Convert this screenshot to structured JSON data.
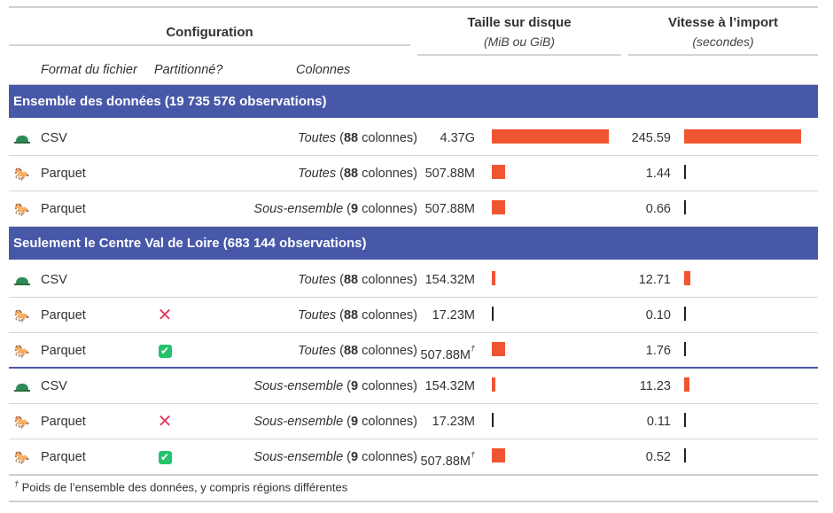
{
  "header": {
    "configuration": "Configuration",
    "size_title": "Taille sur disque",
    "size_subtitle": "(MiB ou GiB)",
    "speed_title": "Vitesse à l’import",
    "speed_subtitle": "(secondes)",
    "col_format": "Format du fichier",
    "col_partition": "Partitionné?",
    "col_columns": "Colonnes"
  },
  "groups": [
    {
      "label": "Ensemble des données (19 735 576 observations)",
      "rows": [
        {
          "icon": "turtle-icon",
          "format": "CSV",
          "partition": "",
          "cols_word": "Toutes",
          "cols_n": "88",
          "cols_suffix": "colonnes)",
          "size": "4.37G",
          "size_note": "",
          "size_frac": 1.0,
          "speed": "245.59",
          "speed_frac": 1.0
        },
        {
          "icon": "horse-icon",
          "format": "Parquet",
          "partition": "",
          "cols_word": "Toutes",
          "cols_n": "88",
          "cols_suffix": "colonnes)",
          "size": "507.88M",
          "size_note": "",
          "size_frac": 0.113,
          "speed": "1.44",
          "speed_frac": 0.006
        },
        {
          "icon": "horse-icon",
          "format": "Parquet",
          "partition": "",
          "cols_word": "Sous-ensemble",
          "cols_n": "9",
          "cols_suffix": "colonnes)",
          "size": "507.88M",
          "size_note": "",
          "size_frac": 0.113,
          "speed": "0.66",
          "speed_frac": 0.003
        }
      ]
    },
    {
      "label": "Seulement le Centre Val de Loire (683 144 observations)",
      "rows": [
        {
          "icon": "turtle-icon",
          "format": "CSV",
          "partition": "",
          "cols_word": "Toutes",
          "cols_n": "88",
          "cols_suffix": "colonnes)",
          "size": "154.32M",
          "size_note": "",
          "size_frac": 0.034,
          "speed": "12.71",
          "speed_frac": 0.052
        },
        {
          "icon": "horse-icon",
          "format": "Parquet",
          "partition": "no",
          "cols_word": "Toutes",
          "cols_n": "88",
          "cols_suffix": "colonnes)",
          "size": "17.23M",
          "size_note": "",
          "size_frac": 0.004,
          "speed": "0.10",
          "speed_frac": 0.0005
        },
        {
          "icon": "horse-icon",
          "format": "Parquet",
          "partition": "yes",
          "cols_word": "Toutes",
          "cols_n": "88",
          "cols_suffix": "colonnes)",
          "size": "507.88M",
          "size_note": "†",
          "size_frac": 0.113,
          "speed": "1.76",
          "speed_frac": 0.007
        },
        {
          "icon": "turtle-icon",
          "format": "CSV",
          "partition": "",
          "cols_word": "Sous-ensemble",
          "cols_n": "9",
          "cols_suffix": "colonnes)",
          "size": "154.32M",
          "size_note": "",
          "size_frac": 0.034,
          "speed": "11.23",
          "speed_frac": 0.046
        },
        {
          "icon": "horse-icon",
          "format": "Parquet",
          "partition": "no",
          "cols_word": "Sous-ensemble",
          "cols_n": "9",
          "cols_suffix": "colonnes)",
          "size": "17.23M",
          "size_note": "",
          "size_frac": 0.004,
          "speed": "0.11",
          "speed_frac": 0.0005
        },
        {
          "icon": "horse-icon",
          "format": "Parquet",
          "partition": "yes",
          "cols_word": "Sous-ensemble",
          "cols_n": "9",
          "cols_suffix": "colonnes)",
          "size": "507.88M",
          "size_note": "†",
          "size_frac": 0.113,
          "speed": "0.52",
          "speed_frac": 0.002
        }
      ]
    }
  ],
  "footnote_mark": "†",
  "footnote": "Poids de l’ensemble des données, y compris régions différentes",
  "colors": {
    "band": "#4858a8",
    "bar": "#f05532",
    "cross": "#e33a5d",
    "check": "#23c36b"
  }
}
